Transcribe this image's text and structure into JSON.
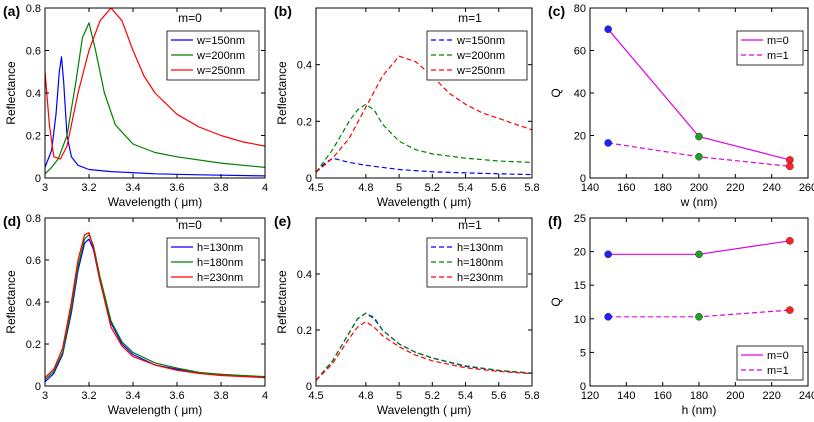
{
  "chart_data": [
    {
      "id": "a",
      "panel_label": "(a)",
      "mode_label": "m=0",
      "type": "line",
      "xlabel": "Wavelength ( μm)",
      "ylabel": "Reflectance",
      "xlim": [
        3,
        4
      ],
      "ylim": [
        0,
        0.8
      ],
      "xticks": [
        3,
        3.2,
        3.4,
        3.6,
        3.8,
        4
      ],
      "yticks": [
        0,
        0.2,
        0.4,
        0.6,
        0.8
      ],
      "xtick_labels": [
        "3",
        "3.2",
        "3.4",
        "3.6",
        "3.8",
        "4"
      ],
      "ytick_labels": [
        "0",
        "0.2",
        "0.4",
        "0.6",
        "0.8"
      ],
      "series": [
        {
          "name": "w=150nm",
          "color": "#0000ff",
          "dash": "solid",
          "x": [
            3.0,
            3.03,
            3.05,
            3.065,
            3.075,
            3.085,
            3.1,
            3.12,
            3.15,
            3.2,
            3.3,
            3.5,
            3.7,
            4.0
          ],
          "y": [
            0.05,
            0.13,
            0.3,
            0.5,
            0.57,
            0.45,
            0.2,
            0.1,
            0.06,
            0.04,
            0.03,
            0.02,
            0.015,
            0.01
          ]
        },
        {
          "name": "w=200nm",
          "color": "#008000",
          "dash": "solid",
          "x": [
            3.0,
            3.03,
            3.06,
            3.1,
            3.14,
            3.17,
            3.2,
            3.23,
            3.27,
            3.32,
            3.4,
            3.5,
            3.6,
            3.8,
            4.0
          ],
          "y": [
            0.02,
            0.05,
            0.09,
            0.2,
            0.45,
            0.66,
            0.73,
            0.6,
            0.4,
            0.25,
            0.16,
            0.12,
            0.1,
            0.07,
            0.05
          ]
        },
        {
          "name": "w=250nm",
          "color": "#ff0000",
          "dash": "solid",
          "x": [
            3.0,
            3.02,
            3.04,
            3.07,
            3.1,
            3.15,
            3.2,
            3.25,
            3.3,
            3.35,
            3.4,
            3.45,
            3.5,
            3.6,
            3.7,
            3.8,
            3.9,
            4.0
          ],
          "y": [
            0.5,
            0.25,
            0.1,
            0.09,
            0.15,
            0.4,
            0.6,
            0.74,
            0.8,
            0.74,
            0.6,
            0.48,
            0.4,
            0.3,
            0.24,
            0.2,
            0.17,
            0.15
          ]
        }
      ],
      "legend": [
        "w=150nm",
        "w=200nm",
        "w=250nm"
      ]
    },
    {
      "id": "b",
      "panel_label": "(b)",
      "mode_label": "m=1",
      "type": "line",
      "xlabel": "Wavelength ( μm)",
      "ylabel": "Reflectance",
      "xlim": [
        4.5,
        5.8
      ],
      "ylim": [
        0,
        0.6
      ],
      "xticks": [
        4.5,
        4.8,
        5.0,
        5.2,
        5.4,
        5.6,
        5.8
      ],
      "yticks": [
        0,
        0.2,
        0.4
      ],
      "xtick_labels": [
        "4.5",
        "4.8",
        "5",
        "5.2",
        "5.4",
        "5.6",
        "5.8"
      ],
      "ytick_labels": [
        "0",
        "0.2",
        "0.4"
      ],
      "series": [
        {
          "name": "w=150nm",
          "color": "#0000ff",
          "dash": "dashed",
          "x": [
            4.5,
            4.55,
            4.6,
            4.7,
            4.8,
            5.0,
            5.2,
            5.4,
            5.6,
            5.8
          ],
          "y": [
            0.02,
            0.05,
            0.07,
            0.055,
            0.045,
            0.03,
            0.022,
            0.018,
            0.015,
            0.012
          ]
        },
        {
          "name": "w=200nm",
          "color": "#008000",
          "dash": "dashed",
          "x": [
            4.5,
            4.6,
            4.7,
            4.75,
            4.8,
            4.85,
            4.9,
            5.0,
            5.1,
            5.2,
            5.4,
            5.6,
            5.8
          ],
          "y": [
            0.02,
            0.1,
            0.2,
            0.24,
            0.26,
            0.24,
            0.19,
            0.13,
            0.1,
            0.085,
            0.07,
            0.06,
            0.055
          ]
        },
        {
          "name": "w=250nm",
          "color": "#ff0000",
          "dash": "dashed",
          "x": [
            4.5,
            4.6,
            4.7,
            4.8,
            4.9,
            5.0,
            5.1,
            5.2,
            5.3,
            5.4,
            5.5,
            5.6,
            5.7,
            5.8
          ],
          "y": [
            0.02,
            0.07,
            0.14,
            0.25,
            0.36,
            0.43,
            0.41,
            0.36,
            0.3,
            0.26,
            0.23,
            0.21,
            0.19,
            0.17
          ]
        }
      ],
      "legend": [
        "w=150nm",
        "w=200nm",
        "w=250nm"
      ]
    },
    {
      "id": "c",
      "panel_label": "(c)",
      "mode_label": "",
      "type": "scatter",
      "xlabel": "w (nm)",
      "ylabel": "Q",
      "xlim": [
        140,
        260
      ],
      "ylim": [
        0,
        80
      ],
      "xticks": [
        140,
        160,
        180,
        200,
        220,
        240,
        260
      ],
      "yticks": [
        0,
        20,
        40,
        60,
        80
      ],
      "xtick_labels": [
        "140",
        "160",
        "180",
        "200",
        "220",
        "240",
        "260"
      ],
      "ytick_labels": [
        "0",
        "20",
        "40",
        "60",
        "80"
      ],
      "series": [
        {
          "name": "m=0",
          "color": "#e000e0",
          "dash": "solid",
          "x": [
            150,
            200,
            250
          ],
          "y": [
            70,
            19.5,
            8.5
          ]
        },
        {
          "name": "m=1",
          "color": "#e000e0",
          "dash": "dashed",
          "x": [
            150,
            200,
            250
          ],
          "y": [
            16.5,
            10,
            5.5
          ]
        }
      ],
      "point_colors": [
        "#2020ff",
        "#20a020",
        "#ff2020"
      ],
      "legend": [
        "m=0",
        "m=1"
      ]
    },
    {
      "id": "d",
      "panel_label": "(d)",
      "mode_label": "m=0",
      "type": "line",
      "xlabel": "Wavelength ( μm)",
      "ylabel": "Reflectance",
      "xlim": [
        3,
        4
      ],
      "ylim": [
        0,
        0.8
      ],
      "xticks": [
        3,
        3.2,
        3.4,
        3.6,
        3.8,
        4
      ],
      "yticks": [
        0,
        0.2,
        0.4,
        0.6,
        0.8
      ],
      "xtick_labels": [
        "3",
        "3.2",
        "3.4",
        "3.6",
        "3.8",
        "4"
      ],
      "ytick_labels": [
        "0",
        "0.2",
        "0.4",
        "0.6",
        "0.8"
      ],
      "series": [
        {
          "name": "h=130nm",
          "color": "#0000ff",
          "dash": "solid",
          "x": [
            3.0,
            3.04,
            3.08,
            3.12,
            3.15,
            3.18,
            3.2,
            3.22,
            3.25,
            3.3,
            3.35,
            3.4,
            3.5,
            3.6,
            3.7,
            3.8,
            4.0
          ],
          "y": [
            0.02,
            0.06,
            0.15,
            0.35,
            0.55,
            0.68,
            0.7,
            0.65,
            0.5,
            0.3,
            0.2,
            0.15,
            0.1,
            0.08,
            0.06,
            0.055,
            0.04
          ]
        },
        {
          "name": "h=180nm",
          "color": "#008000",
          "dash": "solid",
          "x": [
            3.0,
            3.04,
            3.08,
            3.12,
            3.15,
            3.18,
            3.2,
            3.22,
            3.25,
            3.3,
            3.35,
            3.4,
            3.5,
            3.6,
            3.7,
            3.8,
            4.0
          ],
          "y": [
            0.03,
            0.07,
            0.16,
            0.37,
            0.57,
            0.7,
            0.72,
            0.67,
            0.52,
            0.31,
            0.21,
            0.16,
            0.11,
            0.085,
            0.065,
            0.055,
            0.045
          ]
        },
        {
          "name": "h=230nm",
          "color": "#ff0000",
          "dash": "solid",
          "x": [
            3.0,
            3.04,
            3.08,
            3.12,
            3.15,
            3.18,
            3.2,
            3.22,
            3.25,
            3.3,
            3.35,
            3.4,
            3.5,
            3.6,
            3.7,
            3.8,
            4.0
          ],
          "y": [
            0.04,
            0.08,
            0.18,
            0.4,
            0.6,
            0.72,
            0.73,
            0.66,
            0.5,
            0.28,
            0.19,
            0.14,
            0.1,
            0.075,
            0.06,
            0.05,
            0.04
          ]
        }
      ],
      "legend": [
        "h=130nm",
        "h=180nm",
        "h=230nm"
      ]
    },
    {
      "id": "e",
      "panel_label": "(e)",
      "mode_label": "m=1",
      "type": "line",
      "xlabel": "Wavelength ( μm)",
      "ylabel": "Reflectance",
      "xlim": [
        4.5,
        5.8
      ],
      "ylim": [
        0,
        0.6
      ],
      "xticks": [
        4.5,
        4.8,
        5.0,
        5.2,
        5.4,
        5.6,
        5.8
      ],
      "yticks": [
        0,
        0.2,
        0.4
      ],
      "xtick_labels": [
        "4.5",
        "4.8",
        "5",
        "5.2",
        "5.4",
        "5.6",
        "5.8"
      ],
      "ytick_labels": [
        "0",
        "0.2",
        "0.4"
      ],
      "series": [
        {
          "name": "h=130nm",
          "color": "#0000ff",
          "dash": "dashed",
          "x": [
            4.5,
            4.6,
            4.7,
            4.75,
            4.8,
            4.85,
            4.9,
            5.0,
            5.1,
            5.2,
            5.4,
            5.6,
            5.8
          ],
          "y": [
            0.02,
            0.09,
            0.19,
            0.24,
            0.26,
            0.24,
            0.2,
            0.15,
            0.12,
            0.1,
            0.07,
            0.055,
            0.045
          ]
        },
        {
          "name": "h=180nm",
          "color": "#008000",
          "dash": "dashed",
          "x": [
            4.5,
            4.6,
            4.7,
            4.75,
            4.8,
            4.85,
            4.9,
            5.0,
            5.1,
            5.2,
            5.4,
            5.6,
            5.8
          ],
          "y": [
            0.02,
            0.09,
            0.19,
            0.24,
            0.26,
            0.245,
            0.2,
            0.15,
            0.12,
            0.1,
            0.072,
            0.056,
            0.046
          ]
        },
        {
          "name": "h=230nm",
          "color": "#ff0000",
          "dash": "dashed",
          "x": [
            4.5,
            4.6,
            4.7,
            4.75,
            4.8,
            4.85,
            4.9,
            5.0,
            5.1,
            5.2,
            5.4,
            5.6,
            5.8
          ],
          "y": [
            0.02,
            0.08,
            0.17,
            0.21,
            0.23,
            0.21,
            0.18,
            0.14,
            0.11,
            0.09,
            0.065,
            0.052,
            0.044
          ]
        }
      ],
      "legend": [
        "h=130nm",
        "h=180nm",
        "h=230nm"
      ]
    },
    {
      "id": "f",
      "panel_label": "(f)",
      "mode_label": "",
      "type": "scatter",
      "xlabel": "h (nm)",
      "ylabel": "Q",
      "xlim": [
        120,
        240
      ],
      "ylim": [
        0,
        25
      ],
      "xticks": [
        120,
        140,
        160,
        180,
        200,
        220,
        240
      ],
      "yticks": [
        0,
        5,
        10,
        15,
        20,
        25
      ],
      "xtick_labels": [
        "120",
        "140",
        "160",
        "180",
        "200",
        "220",
        "240"
      ],
      "ytick_labels": [
        "0",
        "5",
        "10",
        "15",
        "20",
        "25"
      ],
      "series": [
        {
          "name": "m=0",
          "color": "#e000e0",
          "dash": "solid",
          "x": [
            130,
            180,
            230
          ],
          "y": [
            19.6,
            19.6,
            21.6
          ]
        },
        {
          "name": "m=1",
          "color": "#e000e0",
          "dash": "dashed",
          "x": [
            130,
            180,
            230
          ],
          "y": [
            10.3,
            10.3,
            11.3
          ]
        }
      ],
      "point_colors": [
        "#2020ff",
        "#20a020",
        "#ff2020"
      ],
      "legend": [
        "m=0",
        "m=1"
      ]
    }
  ]
}
